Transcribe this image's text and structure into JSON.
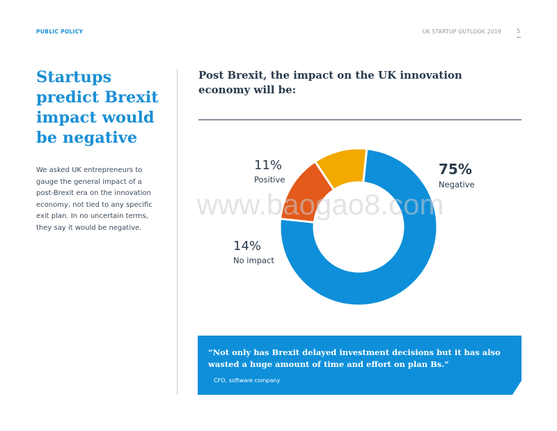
{
  "header": {
    "section": "PUBLIC POLICY",
    "publication": "UK STARTUP OUTLOOK 2019",
    "page_number": "5"
  },
  "headline": "Startups predict Brexit impact would be negative",
  "intro": "We asked UK entrepreneurs to gauge the general impact of a post-Brexit era on the innovation economy, not tied to any specific exit plan. In no uncertain terms, they say it would be negative.",
  "watermark": "www.baogao8.com",
  "quote": {
    "text": "“Not only has Brexit delayed investment decisions but it has also wasted a huge amount of time and effort on plan Bs.”",
    "source": "CFO, software company"
  },
  "colors": {
    "accent": "#1a8fd4",
    "negative": "#0f8fd9",
    "no_impact": "#e35a1a",
    "positive": "#f2a900"
  },
  "chart_data": {
    "type": "pie",
    "title": "Post Brexit, the impact on the UK innovation economy will be:",
    "donut": true,
    "slices": [
      {
        "label": "Negative",
        "value": 75,
        "value_label": "75%",
        "color": "#0f8fd9"
      },
      {
        "label": "No impact",
        "value": 14,
        "value_label": "14%",
        "color": "#e35a1a"
      },
      {
        "label": "Positive",
        "value": 11,
        "value_label": "11%",
        "color": "#f2a900"
      }
    ]
  }
}
